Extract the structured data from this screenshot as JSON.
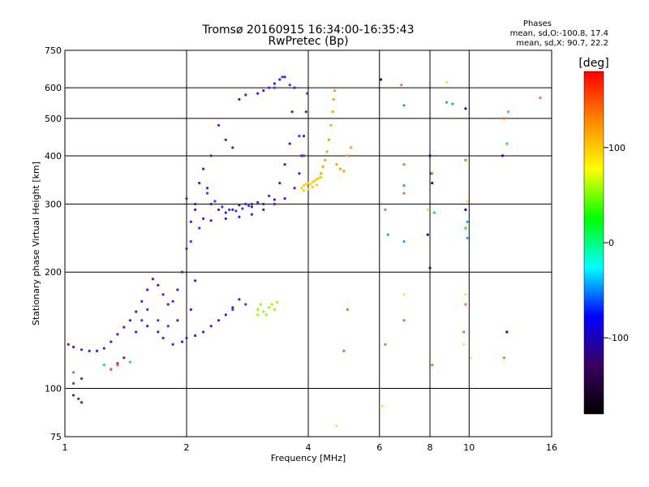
{
  "chart_data": {
    "type": "scatter",
    "title": "Tromsø 20160915 16:34:00-16:35:43",
    "subtitle": "RwPretec (Bp)",
    "xlabel": "Frequency [MHz]",
    "ylabel": "Stationary phase Virtual Height [km]",
    "x_scale": "log",
    "y_scale": "log",
    "xlim": [
      1,
      16
    ],
    "ylim": [
      75,
      750
    ],
    "x_ticks": [
      1,
      2,
      4,
      6,
      8,
      10,
      16
    ],
    "y_ticks": [
      75,
      100,
      200,
      300,
      400,
      500,
      600,
      750
    ],
    "grid": true,
    "stats": {
      "heading": "Phases",
      "o_line": "mean, sd,O:-100.8, 17.4",
      "x_line": "mean, sd,X:  90.7, 22.2"
    },
    "colorbar": {
      "label": "[deg]",
      "range": [
        -180,
        180
      ],
      "ticks": [
        100,
        0,
        -100
      ],
      "stops": [
        "#000000",
        "#3a0060",
        "#0000ff",
        "#00ffff",
        "#00ff00",
        "#ffff00",
        "#ff8800",
        "#ff0000"
      ]
    },
    "series": [
      {
        "color": "#3a22d8",
        "points": [
          [
            1.02,
            130
          ],
          [
            1.05,
            128
          ],
          [
            1.1,
            126
          ],
          [
            1.15,
            125
          ],
          [
            1.2,
            125
          ],
          [
            1.25,
            127
          ],
          [
            1.3,
            132
          ],
          [
            1.35,
            138
          ],
          [
            1.4,
            144
          ],
          [
            1.45,
            150
          ],
          [
            1.5,
            158
          ],
          [
            1.55,
            168
          ],
          [
            1.6,
            180
          ],
          [
            1.65,
            192
          ],
          [
            1.7,
            185
          ],
          [
            1.75,
            175
          ],
          [
            1.8,
            165
          ],
          [
            1.85,
            168
          ],
          [
            1.9,
            180
          ],
          [
            1.95,
            200
          ],
          [
            2.0,
            230
          ],
          [
            2.05,
            270
          ],
          [
            2.1,
            300
          ],
          [
            2.15,
            340
          ],
          [
            2.2,
            370
          ],
          [
            2.25,
            330
          ],
          [
            2.3,
            300
          ],
          [
            2.4,
            290
          ],
          [
            2.5,
            285
          ],
          [
            2.6,
            290
          ],
          [
            2.7,
            298
          ],
          [
            2.8,
            300
          ],
          [
            2.9,
            300
          ],
          [
            3.0,
            303
          ],
          [
            3.2,
            315
          ],
          [
            3.4,
            340
          ],
          [
            3.5,
            380
          ],
          [
            3.6,
            430
          ],
          [
            3.65,
            520
          ],
          [
            3.7,
            600
          ],
          [
            2.0,
            135
          ],
          [
            2.1,
            137
          ],
          [
            2.2,
            140
          ],
          [
            2.3,
            145
          ],
          [
            2.4,
            150
          ],
          [
            2.5,
            155
          ],
          [
            2.6,
            162
          ],
          [
            2.7,
            170
          ],
          [
            1.75,
            135
          ],
          [
            1.85,
            130
          ],
          [
            1.95,
            132
          ],
          [
            1.9,
            150
          ],
          [
            2.05,
            160
          ],
          [
            2.1,
            190
          ],
          [
            2.2,
            275
          ],
          [
            2.3,
            272
          ],
          [
            2.5,
            275
          ],
          [
            2.7,
            278
          ],
          [
            2.9,
            282
          ],
          [
            3.1,
            290
          ],
          [
            3.3,
            300
          ],
          [
            3.5,
            310
          ],
          [
            3.7,
            330
          ],
          [
            3.8,
            360
          ],
          [
            3.85,
            400
          ],
          [
            3.9,
            450
          ],
          [
            3.95,
            520
          ],
          [
            3.98,
            580
          ],
          [
            2.7,
            560
          ],
          [
            2.8,
            575
          ],
          [
            3.0,
            580
          ],
          [
            3.1,
            590
          ],
          [
            3.2,
            600
          ],
          [
            3.3,
            615
          ],
          [
            3.4,
            630
          ],
          [
            3.5,
            640
          ],
          [
            2.6,
            420
          ],
          [
            2.5,
            440
          ],
          [
            2.4,
            480
          ],
          [
            2.3,
            400
          ]
        ]
      },
      {
        "color": "#2244ff",
        "points": [
          [
            2.25,
            320
          ],
          [
            2.35,
            305
          ],
          [
            2.45,
            295
          ],
          [
            2.55,
            290
          ],
          [
            2.65,
            288
          ],
          [
            2.75,
            292
          ],
          [
            2.85,
            297
          ],
          [
            3.3,
            600
          ],
          [
            3.45,
            640
          ],
          [
            3.6,
            610
          ],
          [
            3.8,
            450
          ],
          [
            3.9,
            400
          ],
          [
            2.05,
            240
          ],
          [
            2.15,
            260
          ],
          [
            1.55,
            150
          ],
          [
            1.6,
            160
          ],
          [
            1.7,
            150
          ],
          [
            1.8,
            145
          ],
          [
            2.6,
            160
          ],
          [
            2.8,
            165
          ],
          [
            1.1,
            106
          ],
          [
            1.05,
            103
          ]
        ]
      },
      {
        "color": "#5a1aa8",
        "points": [
          [
            1.05,
            96
          ],
          [
            1.08,
            94
          ],
          [
            1.1,
            92
          ],
          [
            1.3,
            112
          ],
          [
            1.35,
            116
          ],
          [
            1.4,
            120
          ],
          [
            1.5,
            140
          ],
          [
            1.6,
            145
          ],
          [
            1.7,
            140
          ],
          [
            2.0,
            310
          ],
          [
            2.1,
            290
          ],
          [
            2.9,
            295
          ],
          [
            3.1,
            300
          ],
          [
            3.3,
            308
          ]
        ]
      },
      {
        "color": "#ffd000",
        "points": [
          [
            3.85,
            330
          ],
          [
            3.9,
            335
          ],
          [
            3.95,
            338
          ],
          [
            4.0,
            340
          ],
          [
            4.05,
            338
          ],
          [
            4.1,
            342
          ],
          [
            4.15,
            345
          ],
          [
            4.2,
            348
          ],
          [
            4.25,
            350
          ],
          [
            4.3,
            352
          ],
          [
            3.9,
            325
          ],
          [
            4.0,
            328
          ],
          [
            4.1,
            332
          ],
          [
            4.2,
            336
          ]
        ]
      },
      {
        "color": "#ffa000",
        "points": [
          [
            4.3,
            360
          ],
          [
            4.35,
            375
          ],
          [
            4.4,
            390
          ],
          [
            4.45,
            410
          ],
          [
            4.5,
            440
          ],
          [
            4.55,
            480
          ],
          [
            4.6,
            520
          ],
          [
            4.62,
            560
          ],
          [
            4.65,
            590
          ],
          [
            4.7,
            380
          ],
          [
            4.8,
            370
          ],
          [
            4.9,
            365
          ],
          [
            5.0,
            400
          ],
          [
            5.1,
            420
          ]
        ]
      },
      {
        "color": "#a8f020",
        "points": [
          [
            3.0,
            160
          ],
          [
            3.1,
            158
          ],
          [
            3.2,
            162
          ],
          [
            3.25,
            165
          ],
          [
            3.3,
            160
          ],
          [
            3.05,
            165
          ],
          [
            3.15,
            155
          ],
          [
            3.35,
            167
          ],
          [
            3.0,
            155
          ]
        ]
      },
      {
        "color": "#1010a0",
        "points": [
          [
            6.05,
            630
          ],
          [
            8.0,
            400
          ],
          [
            8.05,
            360
          ],
          [
            8.1,
            340
          ],
          [
            9.8,
            530
          ],
          [
            12.1,
            400
          ],
          [
            12.4,
            140
          ],
          [
            7.9,
            250
          ],
          [
            8.0,
            205
          ],
          [
            9.8,
            290
          ]
        ]
      },
      {
        "color": "#20a0ff",
        "points": [
          [
            6.9,
            540
          ],
          [
            6.9,
            240
          ],
          [
            6.9,
            335
          ],
          [
            8.8,
            550
          ],
          [
            9.1,
            545
          ],
          [
            9.9,
            270
          ],
          [
            9.9,
            245
          ],
          [
            4.9,
            125
          ],
          [
            6.3,
            250
          ]
        ]
      },
      {
        "color": "#ff7020",
        "points": [
          [
            6.8,
            610
          ],
          [
            6.9,
            380
          ],
          [
            6.9,
            320
          ],
          [
            6.2,
            290
          ],
          [
            6.2,
            130
          ],
          [
            8.1,
            360
          ],
          [
            8.1,
            115
          ],
          [
            9.8,
            390
          ],
          [
            9.8,
            165
          ],
          [
            12.2,
            500
          ],
          [
            12.2,
            120
          ],
          [
            15.0,
            565
          ],
          [
            6.9,
            150
          ],
          [
            5.0,
            160
          ],
          [
            9.7,
            140
          ]
        ]
      },
      {
        "color": "#ffe040",
        "points": [
          [
            8.8,
            620
          ],
          [
            9.8,
            175
          ],
          [
            9.7,
            130
          ],
          [
            10.1,
            120
          ],
          [
            6.9,
            175
          ],
          [
            6.1,
            90
          ],
          [
            4.7,
            80
          ],
          [
            7.9,
            290
          ],
          [
            9.9,
            305
          ]
        ]
      },
      {
        "color": "#20e060",
        "points": [
          [
            12.4,
            430
          ],
          [
            12.5,
            520
          ],
          [
            8.2,
            285
          ],
          [
            9.8,
            260
          ],
          [
            1.25,
            115
          ],
          [
            1.45,
            117
          ]
        ]
      },
      {
        "color": "#ff5050",
        "points": [
          [
            1.05,
            110
          ],
          [
            1.3,
            112
          ],
          [
            1.35,
            115
          ]
        ]
      }
    ]
  }
}
